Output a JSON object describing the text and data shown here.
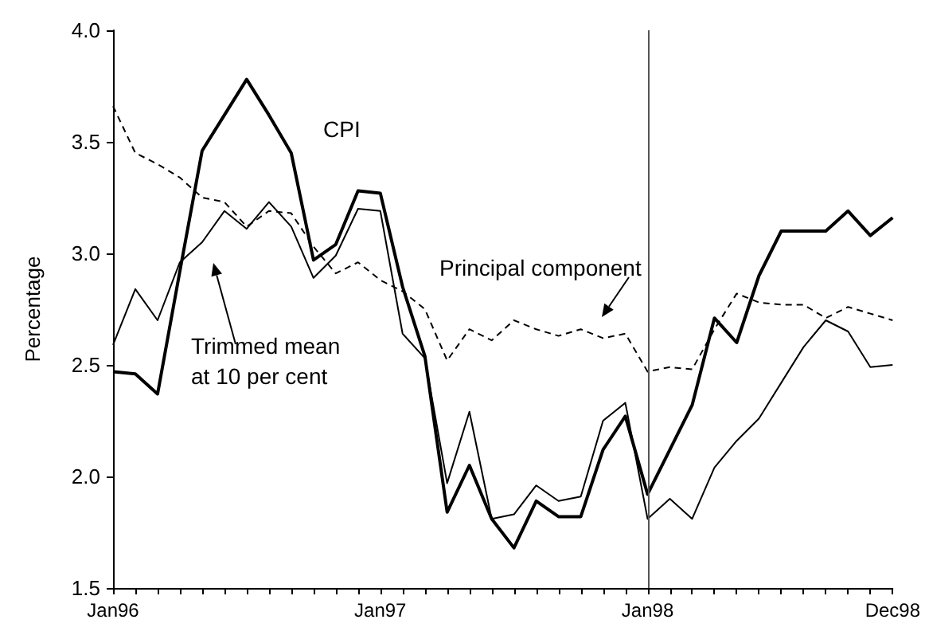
{
  "chart_data": {
    "type": "line",
    "ylabel": "Percentage",
    "categories": [
      "Jan96",
      null,
      null,
      null,
      null,
      null,
      null,
      null,
      null,
      null,
      null,
      null,
      "Jan97",
      null,
      null,
      null,
      null,
      null,
      null,
      null,
      null,
      null,
      null,
      null,
      "Jan98",
      null,
      null,
      null,
      null,
      null,
      null,
      null,
      null,
      null,
      null,
      "Dec98"
    ],
    "series": [
      {
        "color": "#000000",
        "line_style": "solid",
        "values": [
          2.47,
          2.46,
          2.37,
          2.92,
          3.46,
          3.62,
          3.78,
          3.62,
          3.45,
          2.97,
          3.04,
          3.28,
          3.27,
          2.85,
          2.54,
          1.84,
          2.05,
          1.81,
          1.68,
          1.89,
          1.82,
          1.82,
          2.12,
          2.27,
          1.92,
          2.12,
          2.32,
          2.71,
          2.6,
          2.9,
          3.1,
          3.1,
          3.1,
          3.19,
          3.08,
          3.16
        ]
      },
      {
        "color": "#000000",
        "line_style": "solid",
        "values": [
          2.59,
          2.84,
          2.7,
          2.96,
          3.05,
          3.19,
          3.11,
          3.23,
          3.12,
          2.89,
          2.99,
          3.2,
          3.19,
          2.64,
          2.53,
          1.97,
          2.29,
          1.81,
          1.83,
          1.96,
          1.89,
          1.91,
          2.25,
          2.33,
          1.81,
          1.9,
          1.81,
          2.04,
          2.16,
          2.26,
          2.42,
          2.58,
          2.7,
          2.65,
          2.49,
          2.5
        ]
      },
      {
        "color": "#000000",
        "line_style": "dashed",
        "values": [
          3.66,
          3.45,
          3.4,
          3.34,
          3.25,
          3.23,
          3.12,
          3.19,
          3.18,
          3.03,
          2.91,
          2.96,
          2.88,
          2.83,
          2.75,
          2.52,
          2.66,
          2.61,
          2.7,
          2.66,
          2.63,
          2.66,
          2.62,
          2.64,
          2.47,
          2.49,
          2.48,
          2.66,
          2.82,
          2.78,
          2.77,
          2.77,
          2.71,
          2.76,
          2.73,
          2.7
        ]
      }
    ],
    "ylim": [
      1.5,
      4.0
    ],
    "yticks": [
      1.5,
      {
        "value": 2,
        "label": "2.0"
      },
      2.5,
      {
        "value": 3,
        "label": "3.0"
      },
      3.5,
      {
        "value": 4,
        "label": "4.0"
      }
    ],
    "ref_lines": [
      {
        "axis": "x",
        "value": "Jan98",
        "color": "#555555"
      }
    ],
    "annotations": [
      "CPI",
      "Principal component",
      "Trimmed mean\nat 10 per cent"
    ],
    "grid": false,
    "marker": "none"
  }
}
